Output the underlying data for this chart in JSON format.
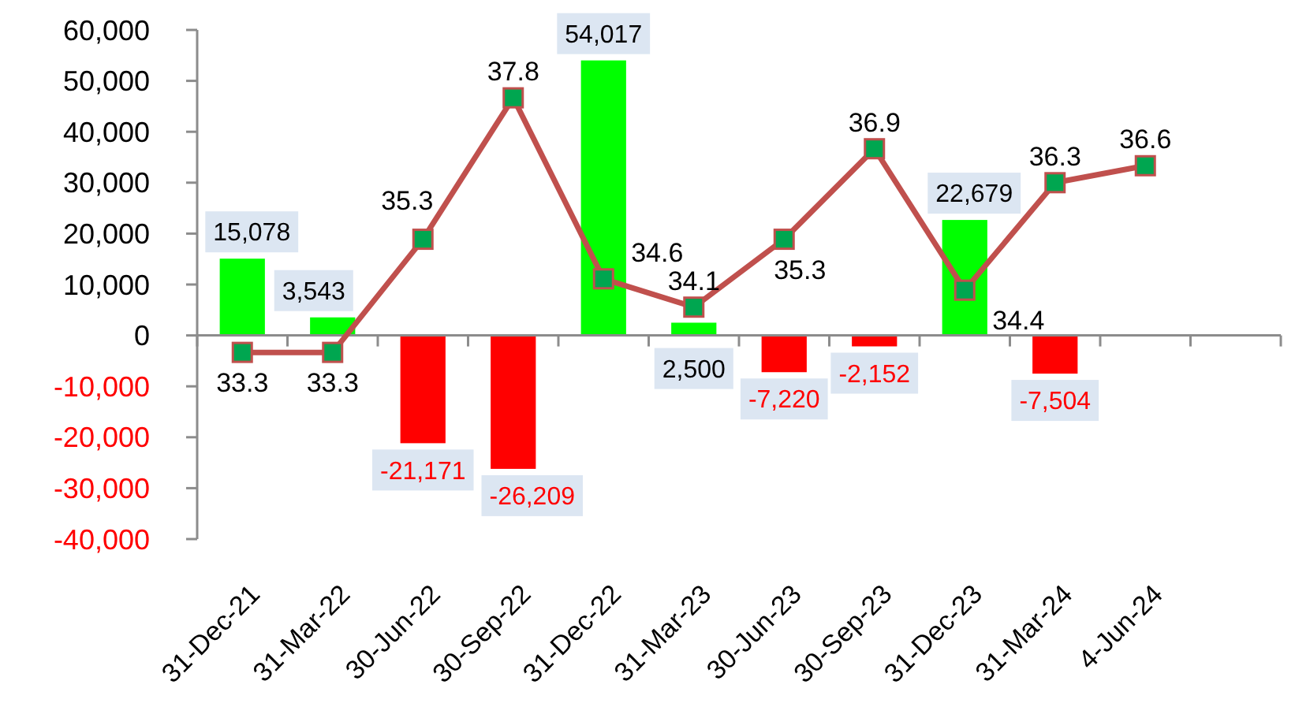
{
  "chart_data": {
    "type": "bar",
    "categories": [
      "31-Dec-21",
      "31-Mar-22",
      "30-Jun-22",
      "30-Sep-22",
      "31-Dec-22",
      "31-Mar-23",
      "30-Jun-23",
      "30-Sep-23",
      "31-Dec-23",
      "31-Mar-24",
      "4-Jun-24",
      null
    ],
    "series": [
      {
        "colors": [
          "#00ff00",
          "#00ff00",
          "#ff0000",
          "#ff0000",
          "#00ff00",
          "#00ff00",
          "#ff0000",
          "#ff0000",
          "#00ff00",
          "#ff0000",
          null,
          null
        ],
        "values": [
          15078,
          3543,
          -21171,
          -26209,
          54017,
          2500,
          -7220,
          -2152,
          22679,
          -7504,
          null,
          null
        ],
        "value_labels": [
          "15,078",
          "3,543",
          "-21,171",
          "-26,209",
          "54,017",
          "2,500",
          "-7,220",
          "-2,152",
          "22,679",
          "-7,504",
          null,
          null
        ]
      },
      {
        "type": "line",
        "axis": "y2",
        "color": "#c0504d",
        "values": [
          33.3,
          33.3,
          35.3,
          37.8,
          34.6,
          34.1,
          35.3,
          36.9,
          34.4,
          36.3,
          36.6,
          null
        ],
        "value_labels": [
          "33.3",
          "33.3",
          "35.3",
          "37.8",
          "34.6",
          "34.1",
          "35.3",
          "36.9",
          "34.4",
          "36.3",
          "36.6",
          null
        ]
      }
    ],
    "ylim": [
      -40000,
      60000
    ],
    "yticks": [
      {
        "value": -40000,
        "label": "-40,000"
      },
      {
        "value": -30000,
        "label": "-30,000"
      },
      {
        "value": -20000,
        "label": "-20,000"
      },
      {
        "value": -10000,
        "label": "-10,000"
      },
      0,
      {
        "value": 10000,
        "label": "10,000"
      },
      {
        "value": 20000,
        "label": "20,000"
      },
      {
        "value": 30000,
        "label": "30,000"
      },
      {
        "value": 40000,
        "label": "40,000"
      },
      {
        "value": 50000,
        "label": "50,000"
      },
      {
        "value": 60000,
        "label": "60,000"
      }
    ],
    "y2lim": [
      30,
      39
    ],
    "marker": "square"
  }
}
